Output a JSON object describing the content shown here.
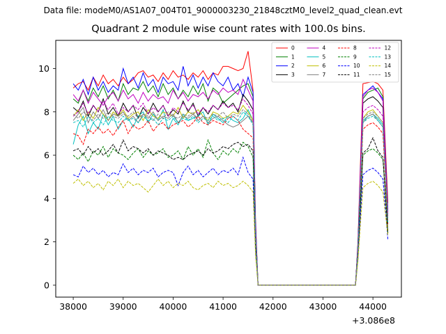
{
  "figure": {
    "suptitle": "Data file: modeM0/AS1A07_004T01_9000003230_21848cztM0_level2_quad_clean.evt",
    "title": "Quadrant 2 module wise count rates with 100.0s bins.",
    "x_offset_label": "+3.086e8"
  },
  "chart_data": {
    "type": "line",
    "title": "Quadrant 2 module wise count rates with 100.0s bins.",
    "xlabel": "",
    "ylabel": "",
    "xlim": [
      37650,
      44570
    ],
    "ylim": [
      -0.55,
      11.3
    ],
    "x_offset": "+3.086e8",
    "grid": false,
    "legend_position": "top-right",
    "x_ticks": [
      38000,
      39000,
      40000,
      41000,
      42000,
      43000,
      44000
    ],
    "y_ticks": [
      0,
      2,
      4,
      6,
      8,
      10
    ],
    "x": [
      38000,
      38100,
      38200,
      38300,
      38400,
      38500,
      38600,
      38700,
      38800,
      38900,
      39000,
      39100,
      39200,
      39300,
      39400,
      39500,
      39600,
      39700,
      39800,
      39900,
      40000,
      40100,
      40200,
      40300,
      40400,
      40500,
      40600,
      40700,
      40800,
      40900,
      41000,
      41100,
      41200,
      41300,
      41400,
      41500,
      41600,
      41650,
      41700,
      43650,
      43700,
      43800,
      43900,
      44000,
      44100,
      44200,
      44300
    ],
    "series": [
      {
        "name": "0",
        "color": "#ff0000",
        "dash": "solid",
        "values": [
          9.1,
          9.3,
          9.4,
          9.0,
          9.6,
          9.2,
          9.7,
          9.3,
          9.5,
          9.2,
          9.6,
          9.3,
          9.5,
          9.8,
          9.9,
          9.6,
          9.7,
          9.4,
          9.8,
          9.5,
          9.9,
          9.6,
          9.7,
          9.5,
          9.8,
          9.6,
          9.9,
          9.5,
          9.8,
          9.7,
          10.1,
          10.1,
          10.0,
          9.9,
          10.0,
          10.8,
          9.0,
          3.0,
          0.0,
          0.0,
          2.0,
          9.3,
          9.35,
          9.4,
          9.3,
          9.0,
          3.8
        ]
      },
      {
        "name": "1",
        "color": "#008000",
        "dash": "solid",
        "values": [
          8.6,
          8.4,
          9.0,
          8.5,
          9.1,
          8.7,
          9.2,
          8.6,
          9.0,
          8.5,
          9.3,
          8.8,
          9.1,
          9.0,
          9.4,
          8.9,
          9.2,
          8.7,
          9.3,
          8.8,
          9.1,
          8.6,
          9.0,
          8.7,
          9.2,
          8.8,
          9.3,
          8.5,
          9.1,
          8.9,
          8.4,
          8.6,
          8.8,
          9.0,
          9.2,
          9.3,
          8.7,
          2.8,
          0.0,
          0.0,
          1.9,
          8.6,
          8.9,
          9.0,
          9.1,
          8.7,
          3.5
        ]
      },
      {
        "name": "2",
        "color": "#0000ff",
        "dash": "solid",
        "values": [
          9.3,
          9.0,
          9.5,
          8.8,
          9.6,
          9.0,
          9.4,
          8.9,
          9.2,
          9.0,
          10.0,
          9.3,
          9.6,
          9.1,
          9.8,
          9.2,
          9.5,
          8.9,
          9.6,
          9.3,
          9.4,
          9.0,
          10.1,
          9.2,
          9.7,
          9.1,
          9.6,
          9.2,
          9.8,
          9.4,
          9.2,
          9.6,
          9.0,
          9.3,
          8.7,
          9.6,
          8.9,
          2.9,
          0.0,
          0.0,
          1.9,
          8.8,
          9.0,
          9.2,
          8.9,
          8.6,
          3.4
        ]
      },
      {
        "name": "3",
        "color": "#000000",
        "dash": "solid",
        "values": [
          8.2,
          8.0,
          8.5,
          7.8,
          8.3,
          8.0,
          8.6,
          7.9,
          8.2,
          7.8,
          8.4,
          8.0,
          8.3,
          7.7,
          8.2,
          7.9,
          8.4,
          8.0,
          8.3,
          7.8,
          8.1,
          7.9,
          8.5,
          8.0,
          8.4,
          7.8,
          8.2,
          7.9,
          8.3,
          8.1,
          8.5,
          8.2,
          8.4,
          8.0,
          8.8,
          8.5,
          8.1,
          2.5,
          0.0,
          0.0,
          1.8,
          8.4,
          8.6,
          8.7,
          8.5,
          8.2,
          3.2
        ]
      },
      {
        "name": "4",
        "color": "#bf00bf",
        "dash": "solid",
        "values": [
          8.8,
          8.5,
          9.0,
          8.4,
          8.9,
          8.6,
          8.3,
          8.7,
          8.9,
          8.5,
          9.0,
          8.6,
          8.8,
          8.4,
          8.9,
          8.5,
          8.8,
          8.6,
          8.7,
          8.4,
          9.0,
          8.6,
          8.9,
          8.5,
          8.8,
          8.7,
          8.9,
          8.6,
          9.0,
          8.8,
          9.1,
          8.9,
          9.0,
          8.8,
          9.5,
          9.0,
          8.5,
          2.6,
          0.0,
          0.0,
          1.8,
          8.7,
          9.0,
          9.1,
          8.9,
          8.5,
          3.3
        ]
      },
      {
        "name": "5",
        "color": "#00bfbf",
        "dash": "solid",
        "values": [
          6.5,
          7.4,
          7.8,
          7.0,
          7.5,
          7.2,
          7.9,
          7.4,
          7.8,
          7.2,
          7.6,
          7.7,
          7.3,
          7.8,
          8.0,
          7.5,
          7.9,
          7.6,
          8.1,
          7.2,
          7.7,
          7.4,
          7.9,
          7.6,
          7.7,
          7.8,
          8.0,
          7.4,
          7.9,
          7.7,
          7.5,
          7.8,
          7.6,
          7.5,
          7.7,
          8.1,
          7.6,
          2.3,
          0.0,
          0.0,
          1.6,
          7.6,
          7.8,
          7.9,
          7.7,
          7.4,
          3.0
        ]
      },
      {
        "name": "6",
        "color": "#bfbf00",
        "dash": "solid",
        "values": [
          7.8,
          8.1,
          7.6,
          8.0,
          7.7,
          8.2,
          7.9,
          7.6,
          8.0,
          7.8,
          8.1,
          7.7,
          7.9,
          8.0,
          7.6,
          8.1,
          7.8,
          7.7,
          8.0,
          7.9,
          7.8,
          8.2,
          7.7,
          8.0,
          7.9,
          8.1,
          7.8,
          7.6,
          8.0,
          7.9,
          7.7,
          7.8,
          8.0,
          7.9,
          8.3,
          8.0,
          7.6,
          2.3,
          0.0,
          0.0,
          1.6,
          7.7,
          8.0,
          8.1,
          7.8,
          7.5,
          2.4
        ]
      },
      {
        "name": "7",
        "color": "#7f7f7f",
        "dash": "solid",
        "values": [
          7.6,
          7.9,
          8.2,
          7.5,
          8.0,
          7.7,
          8.1,
          7.6,
          7.9,
          7.8,
          8.0,
          7.6,
          7.8,
          7.5,
          7.9,
          7.7,
          8.0,
          7.6,
          7.8,
          7.7,
          7.9,
          7.5,
          7.8,
          7.7,
          7.9,
          7.6,
          7.8,
          7.5,
          7.7,
          7.8,
          7.6,
          7.4,
          7.3,
          7.4,
          7.6,
          7.8,
          7.5,
          2.4,
          0.0,
          0.0,
          1.6,
          7.5,
          7.8,
          7.9,
          7.6,
          7.3,
          2.9
        ]
      },
      {
        "name": "8",
        "color": "#ff0000",
        "dash": "dashed",
        "values": [
          7.0,
          6.9,
          6.5,
          7.2,
          7.0,
          7.3,
          7.0,
          7.2,
          6.9,
          7.3,
          7.6,
          7.0,
          7.4,
          7.2,
          7.3,
          7.6,
          7.1,
          7.4,
          7.5,
          7.2,
          7.4,
          7.5,
          7.6,
          7.3,
          7.5,
          7.8,
          7.5,
          7.4,
          7.6,
          7.5,
          7.4,
          7.7,
          7.8,
          7.6,
          7.2,
          7.0,
          6.8,
          2.2,
          0.0,
          0.0,
          1.5,
          7.2,
          7.4,
          7.5,
          7.3,
          7.0,
          2.8
        ]
      },
      {
        "name": "9",
        "color": "#008000",
        "dash": "dashed",
        "values": [
          6.0,
          5.8,
          6.1,
          5.7,
          6.2,
          6.0,
          6.4,
          5.9,
          6.3,
          6.1,
          6.0,
          5.8,
          6.1,
          6.3,
          5.9,
          6.2,
          6.0,
          6.1,
          6.3,
          5.9,
          6.0,
          6.2,
          5.8,
          6.4,
          6.0,
          6.3,
          5.9,
          6.7,
          6.1,
          5.8,
          6.2,
          6.0,
          6.3,
          6.1,
          6.6,
          6.4,
          5.9,
          1.9,
          0.0,
          0.0,
          1.4,
          6.0,
          6.2,
          6.3,
          6.1,
          5.8,
          2.4
        ]
      },
      {
        "name": "10",
        "color": "#0000ff",
        "dash": "dashed",
        "values": [
          5.1,
          5.0,
          5.5,
          5.2,
          5.4,
          5.1,
          5.3,
          5.0,
          5.2,
          5.1,
          5.6,
          5.2,
          5.4,
          5.1,
          5.3,
          5.2,
          5.4,
          5.0,
          5.2,
          5.3,
          5.2,
          4.6,
          5.2,
          5.5,
          5.1,
          5.3,
          5.0,
          5.2,
          5.4,
          5.1,
          5.3,
          5.2,
          5.4,
          5.1,
          5.9,
          5.2,
          4.9,
          1.6,
          0.0,
          0.0,
          1.2,
          5.1,
          5.3,
          5.4,
          5.2,
          4.9,
          2.1
        ]
      },
      {
        "name": "11",
        "color": "#000000",
        "dash": "dashed",
        "values": [
          6.2,
          6.3,
          6.0,
          6.4,
          6.1,
          6.3,
          6.0,
          6.2,
          6.5,
          6.1,
          6.7,
          6.2,
          6.4,
          6.3,
          6.1,
          6.3,
          6.0,
          6.2,
          6.1,
          6.0,
          5.8,
          5.9,
          5.8,
          6.0,
          6.1,
          6.2,
          6.0,
          6.3,
          6.1,
          6.2,
          6.4,
          6.3,
          6.5,
          6.6,
          6.4,
          6.5,
          6.2,
          1.9,
          0.0,
          0.0,
          1.4,
          6.1,
          6.3,
          6.8,
          6.2,
          5.9,
          2.4
        ]
      },
      {
        "name": "12",
        "color": "#bf00bf",
        "dash": "dashed",
        "values": [
          7.8,
          8.0,
          8.4,
          7.9,
          8.3,
          8.0,
          8.5,
          8.1,
          8.4,
          7.9,
          8.2,
          8.0,
          8.3,
          8.1,
          8.4,
          7.9,
          8.2,
          8.0,
          8.3,
          7.8,
          8.2,
          8.0,
          8.4,
          8.1,
          8.3,
          7.9,
          8.2,
          8.0,
          8.3,
          8.1,
          8.4,
          8.2,
          8.3,
          8.1,
          8.6,
          8.3,
          7.9,
          2.4,
          0.0,
          0.0,
          1.7,
          8.0,
          8.2,
          8.3,
          8.1,
          7.8,
          3.1
        ]
      },
      {
        "name": "13",
        "color": "#00bfbf",
        "dash": "dashed",
        "values": [
          7.5,
          7.6,
          7.3,
          7.8,
          7.5,
          7.7,
          7.4,
          7.8,
          7.6,
          7.5,
          7.8,
          7.6,
          7.7,
          7.5,
          7.8,
          7.6,
          7.7,
          7.4,
          7.7,
          7.6,
          7.8,
          7.5,
          7.7,
          7.6,
          7.8,
          7.5,
          7.7,
          7.6,
          7.8,
          7.6,
          7.7,
          7.5,
          7.8,
          7.6,
          8.0,
          7.8,
          7.4,
          2.3,
          0.0,
          0.0,
          1.6,
          7.5,
          7.7,
          7.8,
          7.6,
          7.3,
          2.9
        ]
      },
      {
        "name": "14",
        "color": "#bfbf00",
        "dash": "dashed",
        "values": [
          4.7,
          4.9,
          4.6,
          4.8,
          4.5,
          4.7,
          4.4,
          4.8,
          4.6,
          4.9,
          4.5,
          4.8,
          4.6,
          4.7,
          4.5,
          4.3,
          4.6,
          4.9,
          4.6,
          4.8,
          4.5,
          4.7,
          4.6,
          4.8,
          4.5,
          4.4,
          4.6,
          4.7,
          4.5,
          4.8,
          4.6,
          4.7,
          4.5,
          4.6,
          4.8,
          4.6,
          4.3,
          1.4,
          0.0,
          0.0,
          1.1,
          4.5,
          4.7,
          4.8,
          4.6,
          4.3,
          2.3
        ]
      },
      {
        "name": "15",
        "color": "#7f7f7f",
        "dash": "dashed",
        "values": [
          7.9,
          7.7,
          8.0,
          7.8,
          7.6,
          7.9,
          7.7,
          8.0,
          7.8,
          7.7,
          7.9,
          7.8,
          8.0,
          7.7,
          7.9,
          7.8,
          7.6,
          7.9,
          7.7,
          8.0,
          7.8,
          7.7,
          7.9,
          7.8,
          8.0,
          7.6,
          7.8,
          7.7,
          7.9,
          7.8,
          8.0,
          7.7,
          7.9,
          7.8,
          8.1,
          7.9,
          7.5,
          2.4,
          0.0,
          0.0,
          1.6,
          7.7,
          7.9,
          8.0,
          7.8,
          7.5,
          3.0
        ]
      }
    ]
  }
}
